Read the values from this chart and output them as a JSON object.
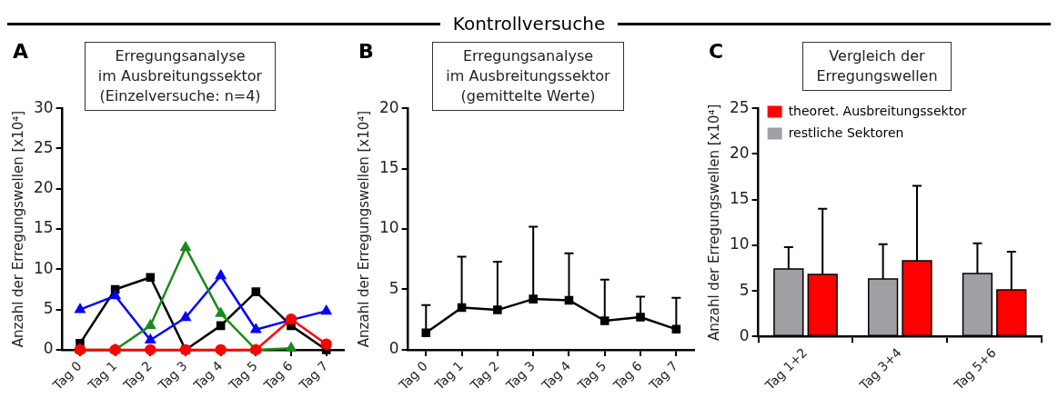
{
  "chart_data": [
    {
      "type": "line",
      "title": "Erregungsanalyse\nim Ausbreitungssektor\n(Einzelversuche: n=4)",
      "ylabel": "Anzahl der Erregungswellen [x10⁴]",
      "annotations": [
        "A",
        "Kontrollversuche"
      ],
      "categories": [
        "Tag 0",
        "Tag 1",
        "Tag 2",
        "Tag 3",
        "Tag 4",
        "Tag 5",
        "Tag 6",
        "Tag 7"
      ],
      "ylim": [
        0,
        30
      ],
      "yticks": [
        0,
        5,
        10,
        15,
        20,
        25,
        30
      ],
      "grid": false,
      "legend": false,
      "line_style": "solid",
      "series": [
        {
          "color": "#000000",
          "marker": "square",
          "values": [
            0.8,
            7.5,
            9,
            0,
            3,
            7.2,
            3,
            0
          ]
        },
        {
          "color": "#0000ff",
          "marker": "triangle",
          "values": [
            5,
            6.7,
            1.2,
            4,
            9.2,
            2.5,
            3.7,
            4.8
          ]
        },
        {
          "color": "#1a8a1a",
          "marker": "triangle",
          "values": [
            0,
            0,
            3,
            12.7,
            4.5,
            0,
            0.2,
            null
          ]
        },
        {
          "color": "#ff0000",
          "marker": "circle",
          "values": [
            0,
            0,
            0,
            0,
            0,
            0,
            3.8,
            0.7
          ]
        }
      ]
    },
    {
      "type": "line",
      "title": "Erregungsanalyse\nim Ausbreitungssektor\n(gemittelte Werte)",
      "ylabel": "Anzahl der Erregungswellen [x10⁴]",
      "annotations": [
        "B"
      ],
      "categories": [
        "Tag 0",
        "Tag 1",
        "Tag 2",
        "Tag 3",
        "Tag 4",
        "Tag 5",
        "Tag 6",
        "Tag 7"
      ],
      "ylim": [
        0,
        20
      ],
      "yticks": [
        0,
        5,
        10,
        15,
        20
      ],
      "grid": false,
      "legend": false,
      "line_style": "solid",
      "marker": "square",
      "series": [
        {
          "color": "#000000",
          "values": [
            1.4,
            3.5,
            3.3,
            4.2,
            4.1,
            2.4,
            2.7,
            1.7
          ],
          "errors": [
            [
              1.4,
              3.7
            ],
            [
              3.5,
              7.7
            ],
            [
              3.3,
              7.3
            ],
            [
              4.2,
              10.2
            ],
            [
              4.1,
              8.0
            ],
            [
              2.4,
              5.8
            ],
            [
              2.7,
              4.4
            ],
            [
              1.7,
              4.3
            ]
          ]
        }
      ]
    },
    {
      "type": "bar",
      "title": "Vergleich der\nErregungswellen",
      "ylabel": "Anzahl der Erregungswellen [x10⁴]",
      "annotations": [
        "C"
      ],
      "categories": [
        "Tag 1+2",
        "Tag 3+4",
        "Tag 5+6"
      ],
      "ylim": [
        0,
        25
      ],
      "yticks": [
        0,
        5,
        10,
        15,
        20,
        25
      ],
      "grid": false,
      "legend": "top left",
      "series": [
        {
          "name": "restliche Sektoren",
          "color": "#a0a0a4",
          "values": [
            7.4,
            6.3,
            6.9
          ],
          "errors": [
            [
              7.4,
              9.8
            ],
            [
              6.3,
              10.1
            ],
            [
              6.9,
              10.2
            ]
          ]
        },
        {
          "name": "theoret. Ausbreitungssektor",
          "color": "#ff0000",
          "values": [
            6.8,
            8.3,
            5.1
          ],
          "errors": [
            [
              6.8,
              14.0
            ],
            [
              8.3,
              16.5
            ],
            [
              5.1,
              9.3
            ]
          ]
        }
      ]
    }
  ]
}
